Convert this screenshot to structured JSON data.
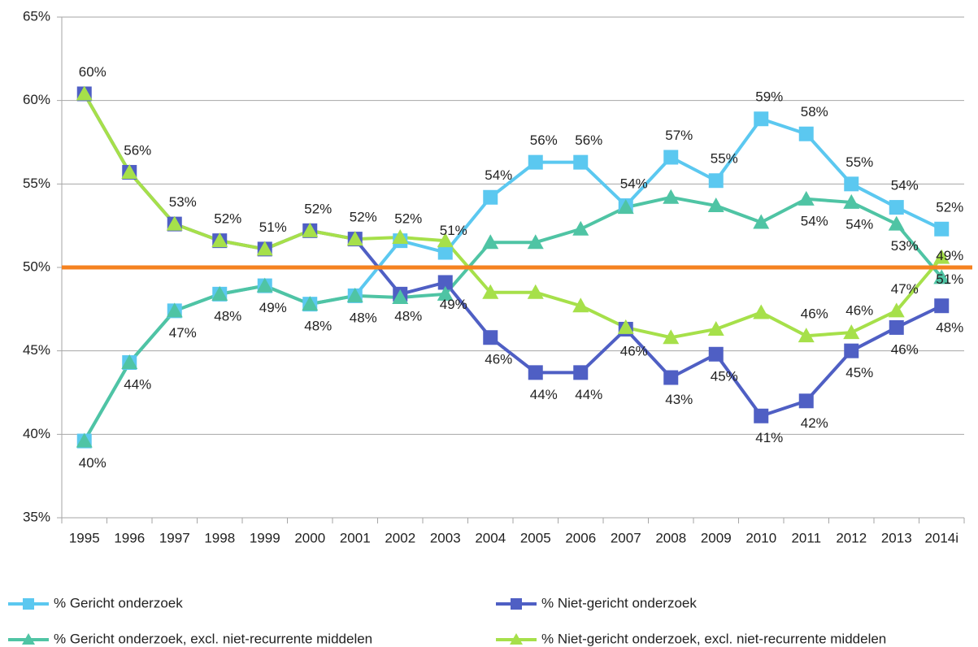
{
  "chart_data": {
    "type": "line",
    "categories": [
      "1995",
      "1996",
      "1997",
      "1998",
      "1999",
      "2000",
      "2001",
      "2002",
      "2003",
      "2004",
      "2005",
      "2006",
      "2007",
      "2008",
      "2009",
      "2010",
      "2011",
      "2012",
      "2013",
      "2014i"
    ],
    "ylim": [
      35,
      65
    ],
    "yticks": [
      {
        "value": 35,
        "label": "35%"
      },
      {
        "value": 40,
        "label": "40%"
      },
      {
        "value": 45,
        "label": "45%"
      },
      {
        "value": 50,
        "label": "50%"
      },
      {
        "value": 55,
        "label": "55%"
      },
      {
        "value": 60,
        "label": "60%"
      },
      {
        "value": 65,
        "label": "65%"
      }
    ],
    "grid": true,
    "reference_line": {
      "value": 50,
      "color": "#f58220"
    },
    "series": [
      {
        "name": "% Gericht onderzoek",
        "color": "#5bc8f0",
        "marker": "square",
        "values": [
          39.6,
          44.3,
          47.4,
          48.4,
          48.9,
          47.8,
          48.3,
          51.6,
          50.9,
          54.2,
          56.3,
          56.3,
          53.7,
          56.6,
          55.2,
          58.9,
          58.0,
          55.0,
          53.6,
          52.3
        ],
        "value_labels": [
          "40%",
          "44%",
          "47%",
          "48%",
          "49%",
          "48%",
          "48%",
          "52%",
          "51%",
          "54%",
          "56%",
          "56%",
          "54%",
          "57%",
          "55%",
          "59%",
          "58%",
          "55%",
          "54%",
          "52%"
        ]
      },
      {
        "name": "% Niet-gericht onderzoek",
        "color": "#4f5fc4",
        "marker": "square",
        "values": [
          60.4,
          55.7,
          52.6,
          51.6,
          51.1,
          52.2,
          51.7,
          48.4,
          49.1,
          45.8,
          43.7,
          43.7,
          46.3,
          43.4,
          44.8,
          41.1,
          42.0,
          45.0,
          46.4,
          47.7
        ],
        "value_labels": [
          "60%",
          "56%",
          "53%",
          "52%",
          "51%",
          "52%",
          "52%",
          "48%",
          "49%",
          "46%",
          "44%",
          "44%",
          "46%",
          "43%",
          "45%",
          "41%",
          "42%",
          "45%",
          "46%",
          "48%"
        ]
      },
      {
        "name": "% Gericht onderzoek, excl. niet-recurrente middelen",
        "color": "#4fc4a4",
        "marker": "triangle",
        "values": [
          39.6,
          44.3,
          47.4,
          48.4,
          48.9,
          47.8,
          48.3,
          48.2,
          48.4,
          51.5,
          51.5,
          52.3,
          53.6,
          54.2,
          53.7,
          52.7,
          54.1,
          53.9,
          52.6,
          49.4
        ],
        "value_labels": [
          null,
          null,
          null,
          null,
          null,
          null,
          null,
          null,
          null,
          null,
          null,
          null,
          null,
          null,
          null,
          null,
          "54%",
          "54%",
          "53%",
          "49%"
        ]
      },
      {
        "name": "% Niet-gericht onderzoek, excl. niet-recurrente middelen",
        "color": "#a6e04a",
        "marker": "triangle",
        "values": [
          60.4,
          55.7,
          52.6,
          51.6,
          51.1,
          52.2,
          51.7,
          51.8,
          51.6,
          48.5,
          48.5,
          47.7,
          46.4,
          45.8,
          46.3,
          47.3,
          45.9,
          46.1,
          47.4,
          50.6
        ],
        "value_labels": [
          null,
          null,
          null,
          null,
          null,
          null,
          null,
          null,
          null,
          null,
          null,
          null,
          null,
          null,
          null,
          null,
          "46%",
          "46%",
          "47%",
          "51%"
        ]
      }
    ]
  }
}
